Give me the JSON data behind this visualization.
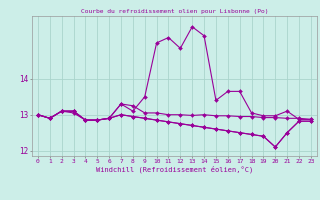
{
  "title": "Courbe du refroidissement olien pour Lisbonne (Po)",
  "xlabel": "Windchill (Refroidissement éolien,°C)",
  "background_color": "#cceee8",
  "line_color": "#990099",
  "grid_color": "#aad4cc",
  "xlim": [
    -0.5,
    23.5
  ],
  "ylim": [
    11.85,
    15.75
  ],
  "yticks": [
    12,
    13,
    14
  ],
  "xticks": [
    0,
    1,
    2,
    3,
    4,
    5,
    6,
    7,
    8,
    9,
    10,
    11,
    12,
    13,
    14,
    15,
    16,
    17,
    18,
    19,
    20,
    21,
    22,
    23
  ],
  "series": [
    [
      13.0,
      12.9,
      13.1,
      13.1,
      12.85,
      12.85,
      12.9,
      13.3,
      13.25,
      13.05,
      13.05,
      13.0,
      13.0,
      12.98,
      13.0,
      12.97,
      12.97,
      12.95,
      12.95,
      12.92,
      12.92,
      12.9,
      12.9,
      12.87
    ],
    [
      13.0,
      12.9,
      13.1,
      13.1,
      12.85,
      12.85,
      12.9,
      13.3,
      13.1,
      13.5,
      15.0,
      15.15,
      14.85,
      15.45,
      15.2,
      13.4,
      13.65,
      13.65,
      13.05,
      12.97,
      12.97,
      13.1,
      12.87,
      12.87
    ],
    [
      13.0,
      12.9,
      13.1,
      13.1,
      12.85,
      12.85,
      12.9,
      13.0,
      12.95,
      12.9,
      12.85,
      12.8,
      12.75,
      12.7,
      12.65,
      12.6,
      12.55,
      12.5,
      12.45,
      12.4,
      12.1,
      12.5,
      12.82,
      12.82
    ],
    [
      13.0,
      12.9,
      13.1,
      13.05,
      12.85,
      12.85,
      12.9,
      13.0,
      12.95,
      12.9,
      12.85,
      12.8,
      12.75,
      12.7,
      12.65,
      12.6,
      12.55,
      12.5,
      12.45,
      12.4,
      12.1,
      12.5,
      12.82,
      12.82
    ]
  ]
}
